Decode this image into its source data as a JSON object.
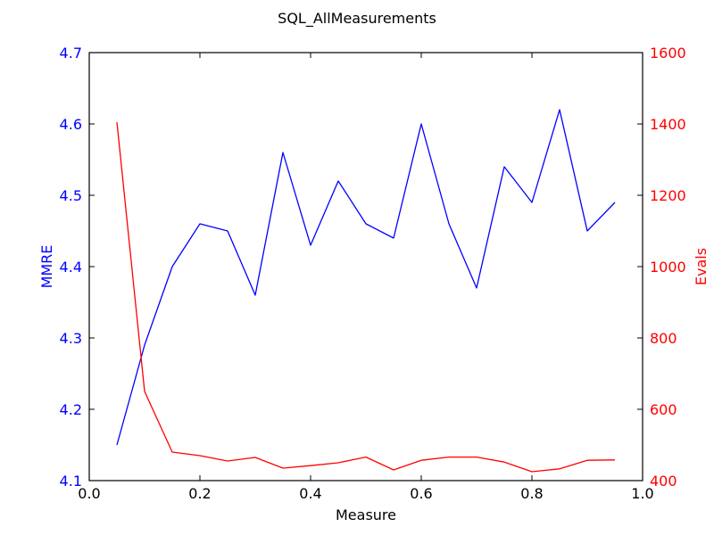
{
  "chart_data": {
    "type": "line",
    "title": "SQL_AllMeasurements",
    "xlabel": "Measure",
    "ylabel_left": "MMRE",
    "ylabel_right": "Evals",
    "xlim": [
      0.0,
      1.0
    ],
    "ylim_left": [
      4.1,
      4.7
    ],
    "ylim_right": [
      400,
      1600
    ],
    "x_ticks": [
      "0.0",
      "0.2",
      "0.4",
      "0.6",
      "0.8",
      "1.0"
    ],
    "y_left_ticks": [
      "4.1",
      "4.2",
      "4.3",
      "4.4",
      "4.5",
      "4.6",
      "4.7"
    ],
    "y_right_ticks": [
      "400",
      "600",
      "800",
      "1000",
      "1200",
      "1400",
      "1600"
    ],
    "grid": false,
    "colors": {
      "left": "#0000ff",
      "right": "#ff0000"
    },
    "x": [
      0.05,
      0.1,
      0.15,
      0.2,
      0.25,
      0.3,
      0.35,
      0.4,
      0.45,
      0.5,
      0.55,
      0.6,
      0.65,
      0.7,
      0.75,
      0.8,
      0.85,
      0.9,
      0.95
    ],
    "series": [
      {
        "axis": "left",
        "values": [
          4.15,
          4.29,
          4.4,
          4.46,
          4.45,
          4.36,
          4.56,
          4.43,
          4.52,
          4.46,
          4.44,
          4.6,
          4.46,
          4.37,
          4.54,
          4.49,
          4.62,
          4.45,
          4.49
        ]
      },
      {
        "axis": "right",
        "values": [
          1405,
          650,
          480,
          470,
          455,
          465,
          435,
          442,
          450,
          466,
          430,
          457,
          466,
          466,
          452,
          425,
          433,
          457,
          458
        ]
      }
    ]
  }
}
